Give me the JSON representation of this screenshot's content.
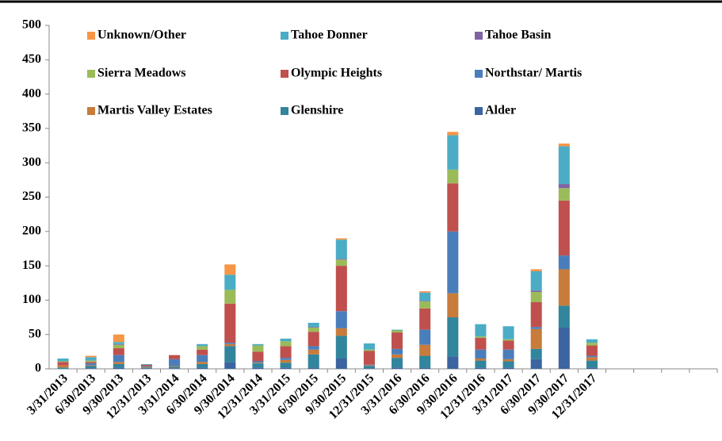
{
  "chart_data": {
    "type": "stacked_bar",
    "categories": [
      "3/31/2013",
      "6/30/2013",
      "9/30/2013",
      "12/31/2013",
      "3/31/2014",
      "6/30/2014",
      "9/30/2014",
      "12/31/2014",
      "3/31/2015",
      "6/30/2015",
      "9/30/2015",
      "12/31/2015",
      "3/31/2016",
      "6/30/2016",
      "9/30/2016",
      "12/31/2016",
      "3/31/2017",
      "6/30/2017",
      "9/30/2017",
      "12/31/2017",
      null,
      null,
      null,
      null
    ],
    "series": [
      {
        "name": "Alder",
        "color": "#3b64a0",
        "values": [
          0,
          1,
          2,
          1,
          1,
          2,
          10,
          2,
          2,
          2,
          15,
          1,
          2,
          2,
          18,
          2,
          2,
          14,
          60,
          2,
          null,
          null,
          null,
          null
        ]
      },
      {
        "name": "Glenshire",
        "color": "#31859c",
        "values": [
          2,
          3,
          5,
          1,
          2,
          5,
          23,
          6,
          7,
          19,
          33,
          3,
          14,
          17,
          57,
          10,
          9,
          15,
          32,
          10,
          null,
          null,
          null,
          null
        ]
      },
      {
        "name": "Martis Valley Estates",
        "color": "#c87b3a",
        "values": [
          3,
          1,
          3,
          1,
          1,
          3,
          3,
          1,
          4,
          7,
          11,
          1,
          5,
          16,
          35,
          3,
          3,
          29,
          53,
          5,
          null,
          null,
          null,
          null
        ]
      },
      {
        "name": "Northstar/ Martis",
        "color": "#4a7ebb",
        "values": [
          0,
          3,
          10,
          1,
          10,
          10,
          2,
          2,
          3,
          5,
          25,
          1,
          8,
          22,
          90,
          13,
          14,
          3,
          20,
          2,
          null,
          null,
          null,
          null
        ]
      },
      {
        "name": "Olympic Heights",
        "color": "#c0504d",
        "values": [
          5,
          2,
          10,
          2,
          6,
          8,
          57,
          14,
          17,
          21,
          66,
          20,
          24,
          31,
          70,
          17,
          13,
          36,
          80,
          15,
          null,
          null,
          null,
          null
        ]
      },
      {
        "name": "Sierra Meadows",
        "color": "#9bbb59",
        "values": [
          1,
          2,
          5,
          0,
          0,
          5,
          20,
          9,
          7,
          6,
          9,
          2,
          3,
          10,
          20,
          2,
          2,
          15,
          18,
          4,
          null,
          null,
          null,
          null
        ]
      },
      {
        "name": "Tahoe Basin",
        "color": "#8064a2",
        "values": [
          0,
          0,
          1,
          0,
          0,
          0,
          0,
          0,
          0,
          1,
          1,
          0,
          0,
          1,
          0,
          0,
          0,
          2,
          6,
          0,
          null,
          null,
          null,
          null
        ]
      },
      {
        "name": "Tahoe Donner",
        "color": "#4bacc6",
        "values": [
          4,
          5,
          3,
          1,
          0,
          3,
          22,
          2,
          4,
          6,
          28,
          9,
          1,
          12,
          50,
          18,
          19,
          28,
          55,
          5,
          null,
          null,
          null,
          null
        ]
      },
      {
        "name": "Unknown/Other",
        "color": "#f79646",
        "values": [
          0,
          2,
          11,
          0,
          0,
          0,
          15,
          0,
          0,
          0,
          2,
          0,
          0,
          2,
          5,
          0,
          0,
          3,
          4,
          0,
          null,
          null,
          null,
          null
        ]
      }
    ],
    "ylim": [
      0,
      500
    ],
    "yticks": [
      0,
      50,
      100,
      150,
      200,
      250,
      300,
      350,
      400,
      450,
      500
    ],
    "grid": false
  }
}
